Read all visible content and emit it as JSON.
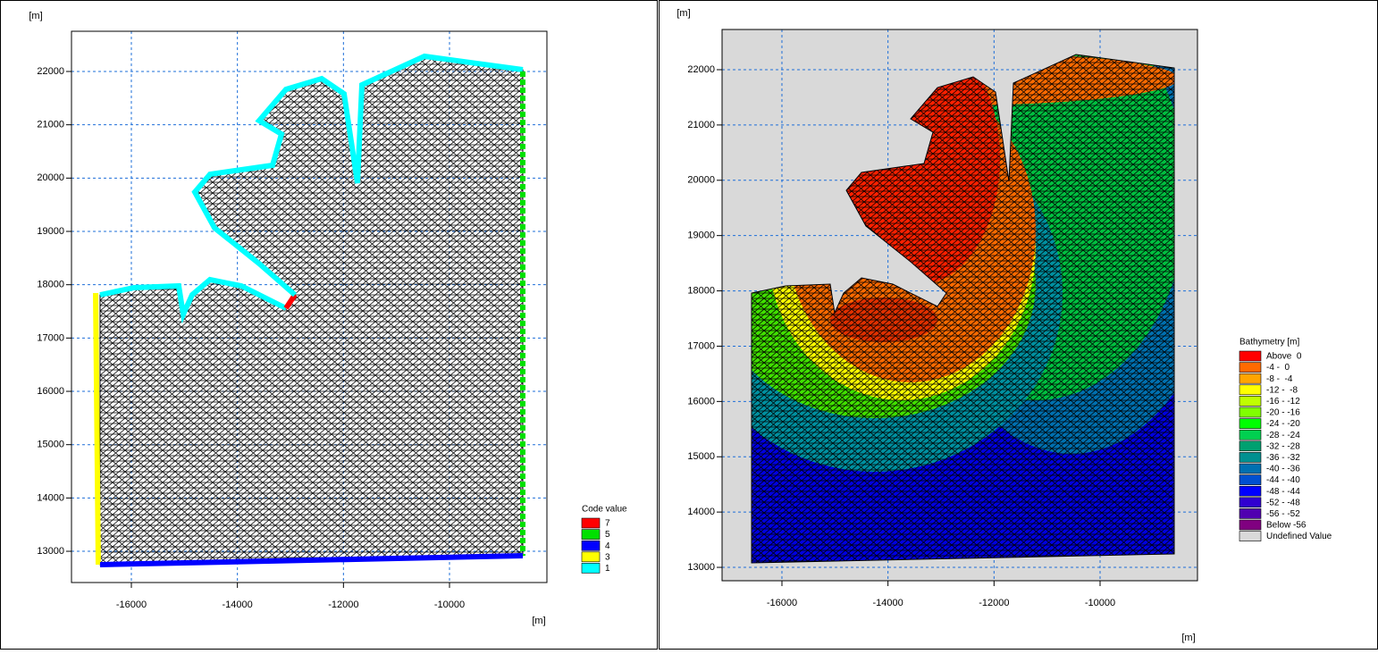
{
  "chart_data": [
    {
      "type": "mesh",
      "x_label": "[m]",
      "y_label": "[m]",
      "xlim": [
        -17129,
        -8163
      ],
      "ylim": [
        12414,
        22754
      ],
      "xticks": [
        -16000,
        -14000,
        -12000,
        -10000
      ],
      "yticks": [
        13000,
        14000,
        15000,
        16000,
        17000,
        18000,
        19000,
        20000,
        21000,
        22000
      ],
      "grid": true,
      "legend": {
        "title": "Code value",
        "items": [
          {
            "label": "7",
            "color": "#ff0000"
          },
          {
            "label": "5",
            "color": "#00e000"
          },
          {
            "label": "4",
            "color": "#0000ff"
          },
          {
            "label": "3",
            "color": "#ffff00"
          },
          {
            "label": "1",
            "color": "#00ffff"
          }
        ]
      }
    },
    {
      "type": "mesh",
      "x_label": "[m]",
      "y_label": "[m]",
      "xlim": [
        -17129,
        -8163
      ],
      "ylim": [
        12758,
        22727
      ],
      "xticks": [
        -16000,
        -14000,
        -12000,
        -10000
      ],
      "yticks": [
        13000,
        14000,
        15000,
        16000,
        17000,
        18000,
        19000,
        20000,
        21000,
        22000
      ],
      "grid": true,
      "legend": {
        "title": "Bathymetry [m]",
        "items": [
          {
            "label": "Above  0",
            "color": "#ff0000"
          },
          {
            "label": "-4 -  0",
            "color": "#ff6a00"
          },
          {
            "label": "-8 -  -4",
            "color": "#ffa500"
          },
          {
            "label": "-12 -  -8",
            "color": "#ffff00"
          },
          {
            "label": "-16 - -12",
            "color": "#c0ff00"
          },
          {
            "label": "-20 - -16",
            "color": "#80ff00"
          },
          {
            "label": "-24 - -20",
            "color": "#00ff00"
          },
          {
            "label": "-28 - -24",
            "color": "#00d050"
          },
          {
            "label": "-32 - -28",
            "color": "#00a070"
          },
          {
            "label": "-36 - -32",
            "color": "#009090"
          },
          {
            "label": "-40 - -36",
            "color": "#0070b0"
          },
          {
            "label": "-44 - -40",
            "color": "#0050d0"
          },
          {
            "label": "-48 - -44",
            "color": "#0000ff"
          },
          {
            "label": "-52 - -48",
            "color": "#3000d0"
          },
          {
            "label": "-56 - -52",
            "color": "#5000b0"
          },
          {
            "label": "Below -56",
            "color": "#800080"
          },
          {
            "label": "Undefined Value",
            "color": "#d9d9d9"
          }
        ]
      }
    }
  ]
}
